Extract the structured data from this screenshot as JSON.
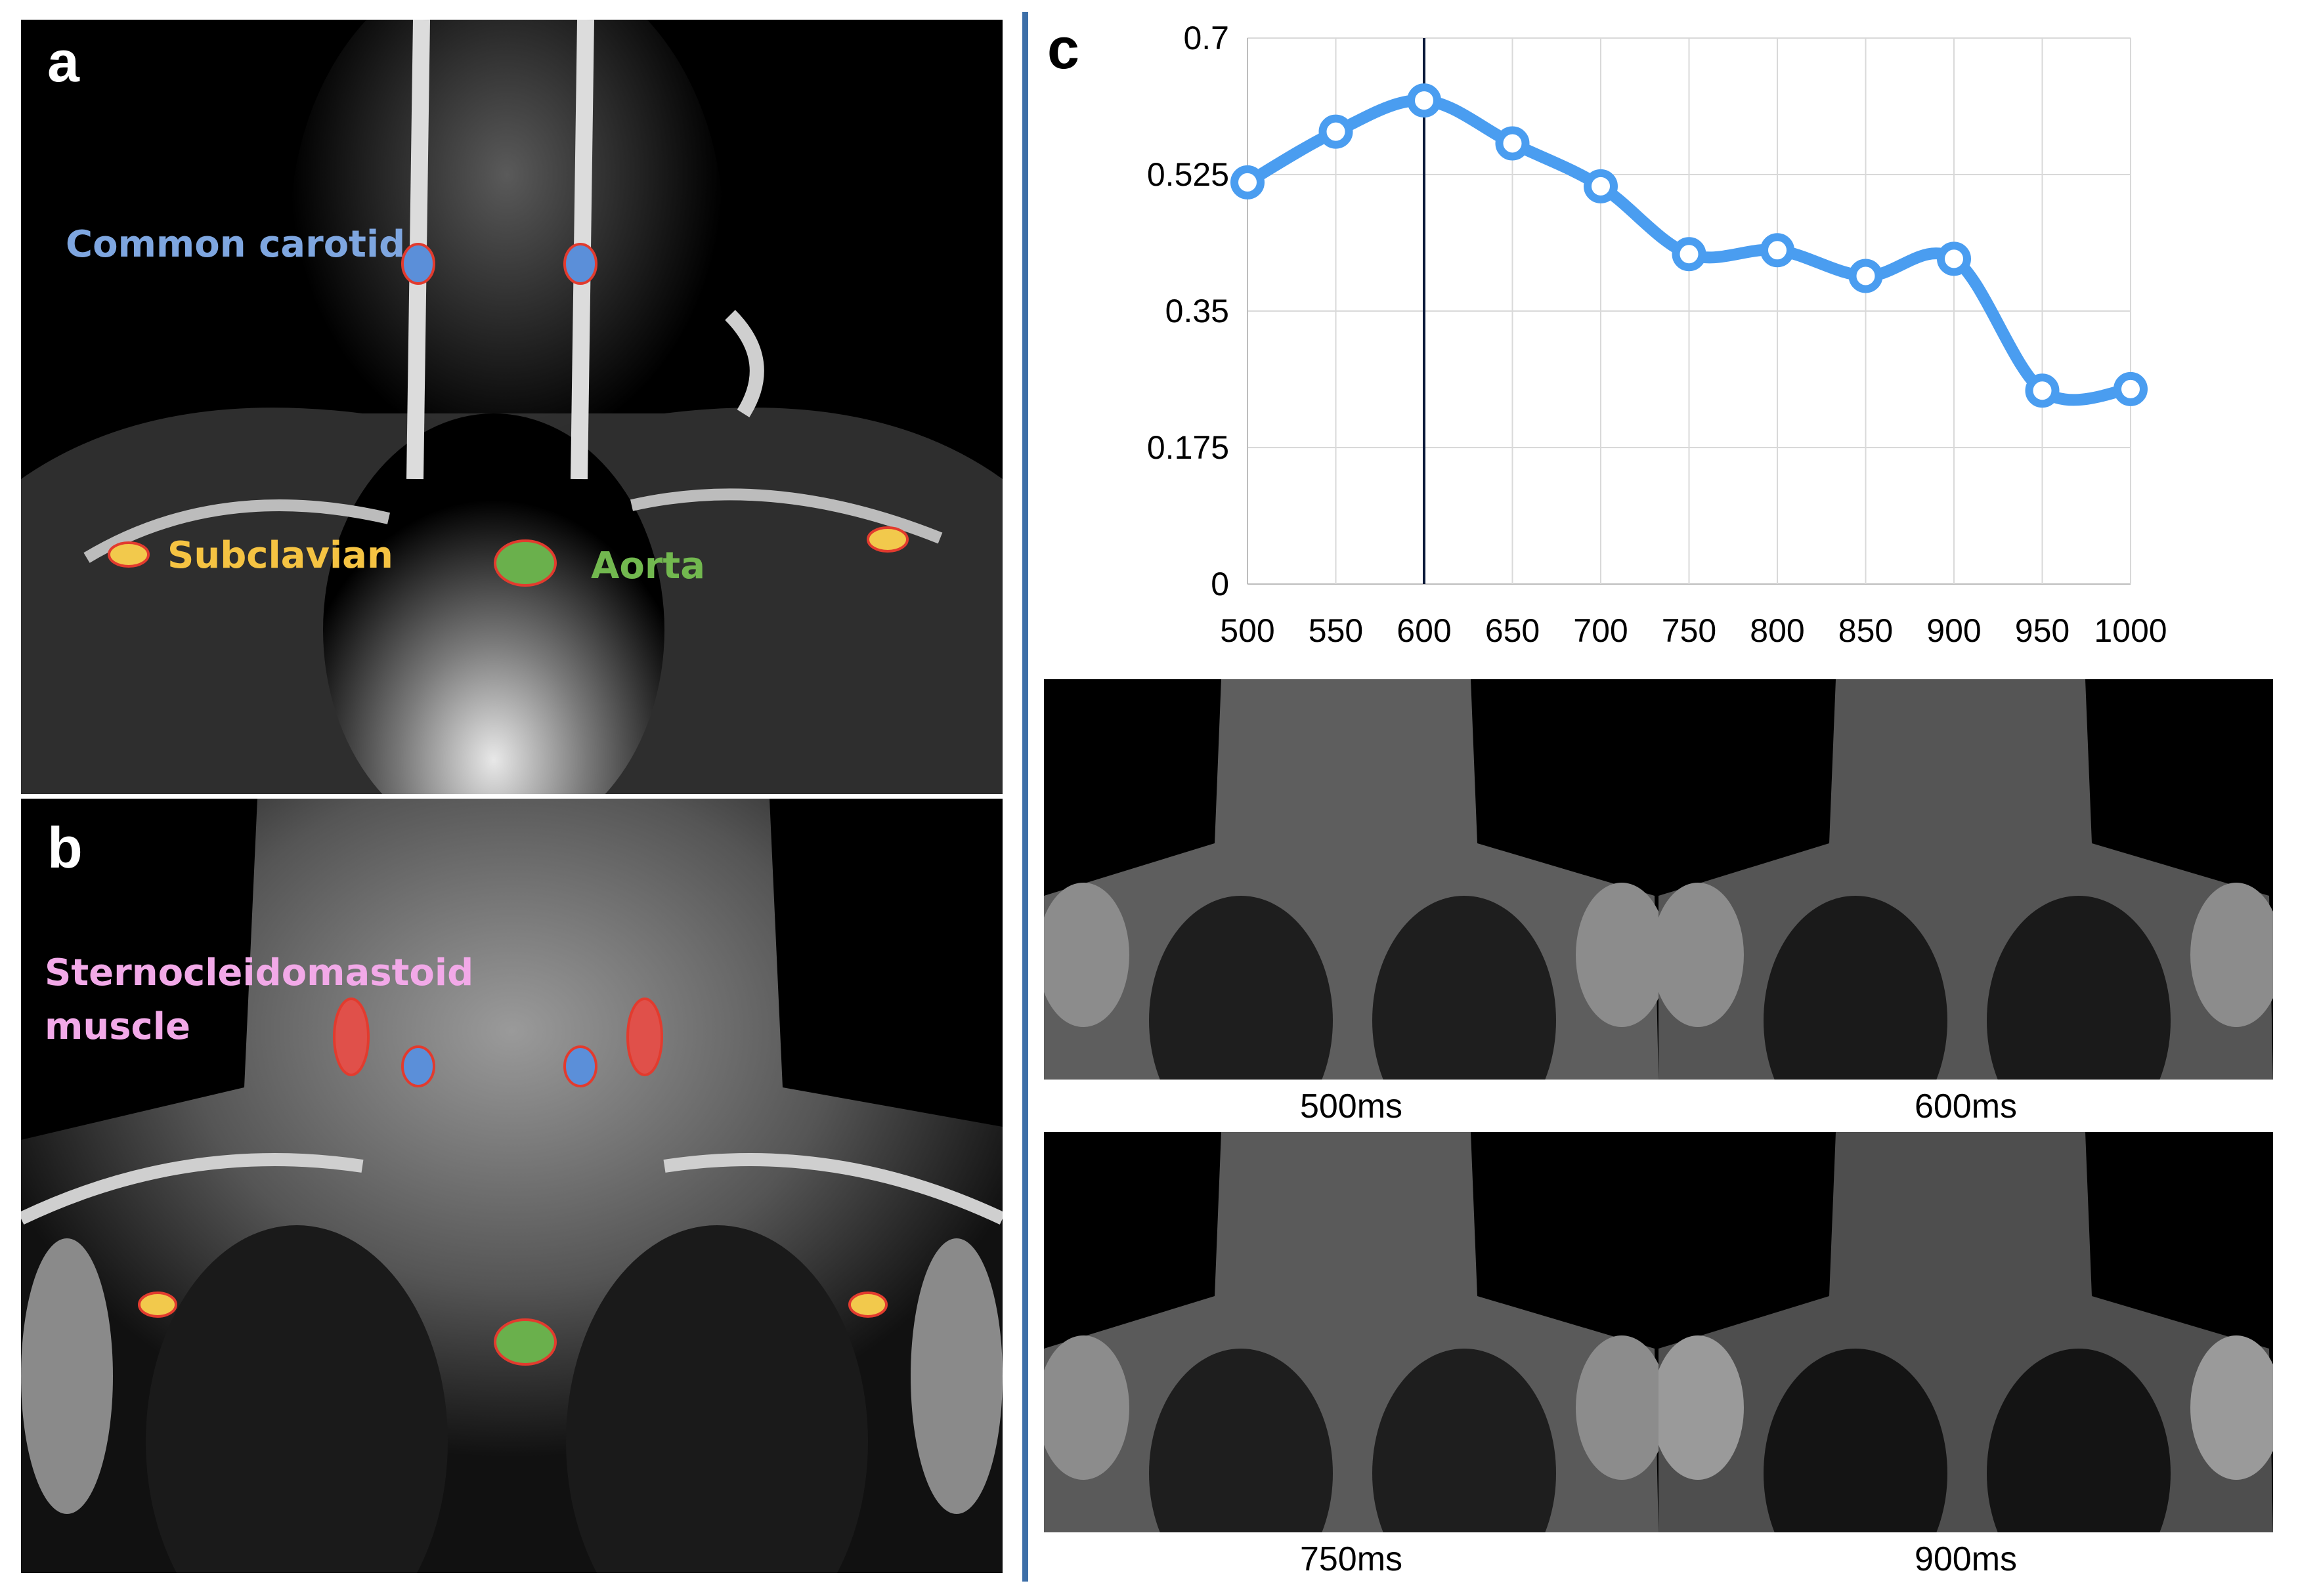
{
  "panels": {
    "a": {
      "letter": "a",
      "labels": {
        "common_carotid": "Common carotid",
        "subclavian": "Subclavian",
        "aorta": "Aorta"
      }
    },
    "b": {
      "letter": "b",
      "labels": {
        "scm_line1": "Sternocleidomastoid",
        "scm_line2": "muscle"
      }
    },
    "c": {
      "letter": "c"
    }
  },
  "colors": {
    "carotid_fill": "#5b8fd9",
    "subclavian_fill": "#f2c94c",
    "aorta_fill": "#6ab04c",
    "scm_fill": "#e0504a",
    "roi_outline": "#e23b2e",
    "label_carotid": "#7ea6e0",
    "label_subclavian": "#f5c342",
    "label_aorta": "#72b84f",
    "label_scm": "#f2a9e8",
    "line_series": "#4a9df0",
    "divider": "#3d6fa8"
  },
  "chart_data": {
    "type": "line",
    "x": [
      500,
      550,
      600,
      650,
      700,
      750,
      800,
      850,
      900,
      950,
      1000
    ],
    "values": [
      0.515,
      0.58,
      0.62,
      0.565,
      0.51,
      0.423,
      0.428,
      0.395,
      0.417,
      0.248,
      0.25
    ],
    "xticks": [
      "500",
      "550",
      "600",
      "650",
      "700",
      "750",
      "800",
      "850",
      "900",
      "950",
      "1000"
    ],
    "yticks": [
      "0",
      "0.175",
      "0.35",
      "0.525",
      "0.7"
    ],
    "ylim": [
      0,
      0.7
    ],
    "xlim": [
      500,
      1000
    ],
    "marker_line_x": 600,
    "grid": true
  },
  "thumbnails": [
    {
      "caption": "500ms"
    },
    {
      "caption": "600ms"
    },
    {
      "caption": "750ms"
    },
    {
      "caption": "900ms"
    }
  ]
}
